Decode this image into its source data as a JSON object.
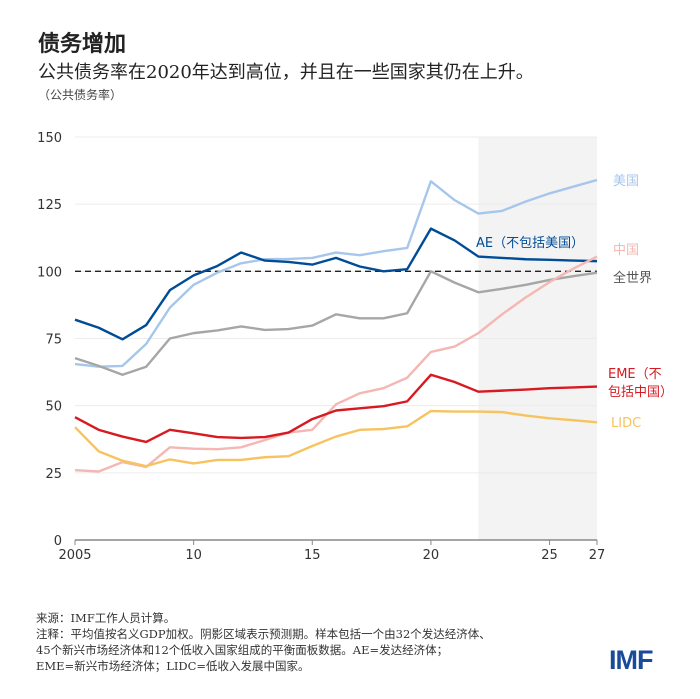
{
  "title": "债务增加",
  "subtitle": "公共债务率在2020年达到高位，并且在一些国家其仍在上升。",
  "unit": "（公共债务率）",
  "notes": {
    "source": "来源：IMF工作人员计算。",
    "note_lines": [
      "注释：平均值按名义GDP加权。阴影区域表示预测期。样本包括一个由32个发达经济体、",
      "45个新兴市场经济体和12个低收入国家组成的平衡面板数据。AE=发达经济体；",
      "EME=新兴市场经济体；LIDC=低收入发展中国家。"
    ]
  },
  "logo": "IMF",
  "chart_data": {
    "type": "line",
    "x": [
      2005,
      2006,
      2007,
      2008,
      2009,
      2010,
      2011,
      2012,
      2013,
      2014,
      2015,
      2016,
      2017,
      2018,
      2019,
      2020,
      2021,
      2022,
      2023,
      2024,
      2025,
      2026,
      2027
    ],
    "xticks": [
      2005,
      2010,
      2015,
      2020,
      2025,
      2027
    ],
    "xtick_labels": [
      "2005",
      "10",
      "15",
      "20",
      "25",
      "27"
    ],
    "ylim": [
      0,
      150
    ],
    "yticks": [
      0,
      25,
      50,
      75,
      100,
      125,
      150
    ],
    "grid": true,
    "reference_line": 100,
    "forecast_shaded_from": 2022,
    "series": [
      {
        "name": "美国",
        "color": "#a7c6ec",
        "values": [
          65.5,
          64.5,
          64.8,
          73,
          86.5,
          95,
          99.5,
          103,
          104.5,
          104.6,
          105,
          107,
          106,
          107.5,
          108.7,
          133.5,
          126.5,
          121.5,
          122.5,
          126,
          129,
          131.5,
          134
        ]
      },
      {
        "name": "AE（不包括美国）",
        "color": "#004c97",
        "values": [
          82,
          79,
          74.7,
          80,
          93,
          98.5,
          102,
          107,
          104,
          103.5,
          102.5,
          105,
          101.8,
          100,
          100.8,
          115.9,
          111.5,
          105.5,
          105,
          104.5,
          104.3,
          104,
          103.8
        ]
      },
      {
        "name": "全世界",
        "color": "#a6a6a6",
        "values": [
          67.7,
          64.8,
          61.5,
          64.5,
          75,
          77,
          78,
          79.5,
          78.2,
          78.5,
          79.8,
          84,
          82.5,
          82.5,
          84.4,
          100,
          95.8,
          92.2,
          93.5,
          95,
          96.8,
          98.2,
          99.5
        ]
      },
      {
        "name": "中国",
        "color": "#f4b7b3",
        "values": [
          26,
          25.5,
          29,
          27.2,
          34.5,
          34,
          33.8,
          34.5,
          37.2,
          40,
          41,
          50.5,
          54.6,
          56.5,
          60.4,
          70,
          72,
          77,
          84,
          90.3,
          96,
          101,
          105.5
        ]
      },
      {
        "name": "EME（不包括中国）",
        "color": "#d71920",
        "values": [
          45.7,
          41,
          38.5,
          36.5,
          41,
          39.7,
          38.3,
          38,
          38.3,
          40,
          45,
          48.2,
          49,
          49.8,
          51.6,
          61.5,
          58.8,
          55.2,
          55.6,
          56,
          56.5,
          56.8,
          57.1
        ]
      },
      {
        "name": "LIDC",
        "color": "#f7c35f",
        "values": [
          42,
          33,
          29.5,
          27.5,
          30,
          28.5,
          29.8,
          29.8,
          30.8,
          31.2,
          35,
          38.5,
          41,
          41.3,
          42.3,
          48,
          47.8,
          47.8,
          47.6,
          46.3,
          45.3,
          44.6,
          43.8
        ]
      }
    ],
    "labels": [
      {
        "series": 0,
        "lines": [
          "美国"
        ]
      },
      {
        "series": 1,
        "lines": [
          "AE（不包括美国）"
        ]
      },
      {
        "series": 3,
        "lines": [
          "中国"
        ]
      },
      {
        "series": 2,
        "lines": [
          "全世界"
        ]
      },
      {
        "series": 4,
        "lines": [
          "EME（不",
          "包括中国）"
        ]
      },
      {
        "series": 5,
        "lines": [
          "LIDC"
        ]
      }
    ]
  }
}
